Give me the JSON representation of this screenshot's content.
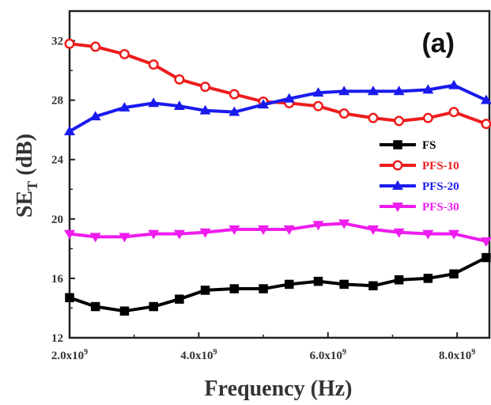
{
  "chart_data": {
    "type": "line",
    "panel_label": "(a)",
    "xlabel": "Frequency (Hz)",
    "ylabel_main": "SE",
    "ylabel_sub": "T",
    "ylabel_unit": " (dB)",
    "xlim": [
      2000000000.0,
      8500000000.0
    ],
    "ylim": [
      12,
      34
    ],
    "x_ticks": [
      {
        "value": 2000000000.0,
        "mantissa": "2.0x10",
        "exp": "9"
      },
      {
        "value": 4000000000.0,
        "mantissa": "4.0x10",
        "exp": "9"
      },
      {
        "value": 6000000000.0,
        "mantissa": "6.0x10",
        "exp": "9"
      },
      {
        "value": 8000000000.0,
        "mantissa": "8.0x10",
        "exp": "9"
      }
    ],
    "y_ticks": [
      12,
      16,
      20,
      24,
      28,
      32
    ],
    "grid": false,
    "legend_position": "right-middle",
    "series": [
      {
        "name": "FS",
        "color": "#000000",
        "marker": "square",
        "x": [
          2000000000.0,
          2400000000.0,
          2850000000.0,
          3300000000.0,
          3700000000.0,
          4100000000.0,
          4550000000.0,
          5000000000.0,
          5400000000.0,
          5850000000.0,
          6250000000.0,
          6700000000.0,
          7100000000.0,
          7550000000.0,
          7950000000.0,
          8450000000.0
        ],
        "y": [
          14.7,
          14.1,
          13.8,
          14.1,
          14.6,
          15.2,
          15.3,
          15.3,
          15.6,
          15.8,
          15.6,
          15.5,
          15.9,
          16.0,
          16.3,
          17.4
        ]
      },
      {
        "name": "PFS-10",
        "color": "#ee1c1c",
        "marker": "circle",
        "x": [
          2000000000.0,
          2400000000.0,
          2850000000.0,
          3300000000.0,
          3700000000.0,
          4100000000.0,
          4550000000.0,
          5000000000.0,
          5400000000.0,
          5850000000.0,
          6250000000.0,
          6700000000.0,
          7100000000.0,
          7550000000.0,
          7950000000.0,
          8450000000.0
        ],
        "y": [
          31.8,
          31.6,
          31.1,
          30.4,
          29.4,
          28.9,
          28.4,
          27.9,
          27.8,
          27.6,
          27.1,
          26.8,
          26.6,
          26.8,
          27.2,
          26.4
        ]
      },
      {
        "name": "PFS-20",
        "color": "#1a1aee",
        "marker": "triangle-up",
        "x": [
          2000000000.0,
          2400000000.0,
          2850000000.0,
          3300000000.0,
          3700000000.0,
          4100000000.0,
          4550000000.0,
          5000000000.0,
          5400000000.0,
          5850000000.0,
          6250000000.0,
          6700000000.0,
          7100000000.0,
          7550000000.0,
          7950000000.0,
          8450000000.0
        ],
        "y": [
          25.9,
          26.9,
          27.5,
          27.8,
          27.6,
          27.3,
          27.2,
          27.7,
          28.1,
          28.5,
          28.6,
          28.6,
          28.6,
          28.7,
          29.0,
          28.0
        ]
      },
      {
        "name": "PFS-30",
        "color": "#ee1cee",
        "marker": "triangle-down",
        "x": [
          2000000000.0,
          2400000000.0,
          2850000000.0,
          3300000000.0,
          3700000000.0,
          4100000000.0,
          4550000000.0,
          5000000000.0,
          5400000000.0,
          5850000000.0,
          6250000000.0,
          6700000000.0,
          7100000000.0,
          7550000000.0,
          7950000000.0,
          8450000000.0
        ],
        "y": [
          19.0,
          18.8,
          18.8,
          19.0,
          19.0,
          19.1,
          19.3,
          19.3,
          19.3,
          19.6,
          19.7,
          19.3,
          19.1,
          19.0,
          19.0,
          18.5
        ]
      }
    ]
  }
}
